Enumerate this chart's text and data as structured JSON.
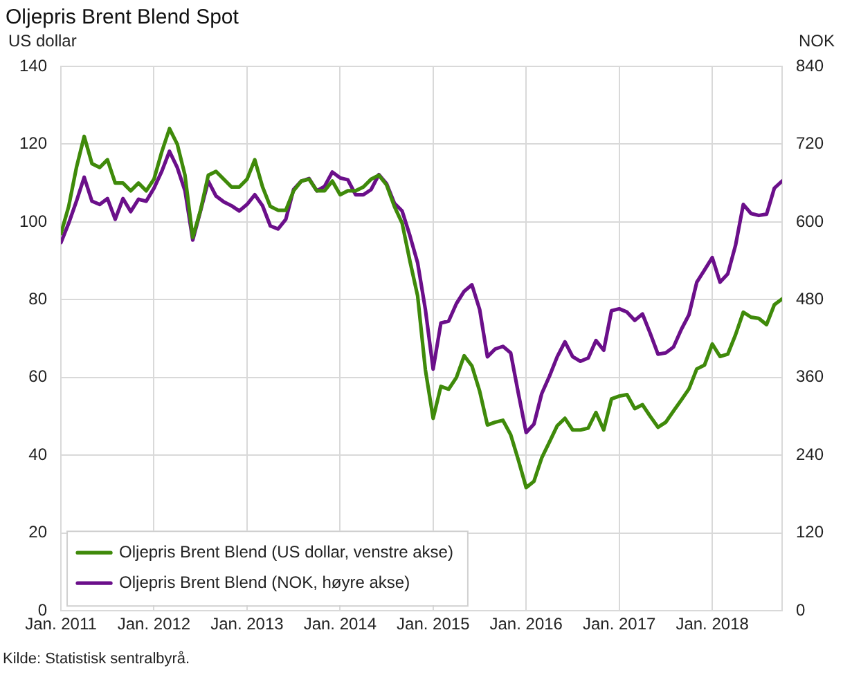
{
  "chart_data": {
    "type": "line",
    "title": "Oljepris Brent Blend Spot",
    "ylabel": "US dollar",
    "y2label": "NOK",
    "annotations": [
      "Kilde: Statistisk sentralbyrå."
    ],
    "x": [
      "2011-01",
      "2011-02",
      "2011-03",
      "2011-04",
      "2011-05",
      "2011-06",
      "2011-07",
      "2011-08",
      "2011-09",
      "2011-10",
      "2011-11",
      "2011-12",
      "2012-01",
      "2012-02",
      "2012-03",
      "2012-04",
      "2012-05",
      "2012-06",
      "2012-07",
      "2012-08",
      "2012-09",
      "2012-10",
      "2012-11",
      "2012-12",
      "2013-01",
      "2013-02",
      "2013-03",
      "2013-04",
      "2013-05",
      "2013-06",
      "2013-07",
      "2013-08",
      "2013-09",
      "2013-10",
      "2013-11",
      "2013-12",
      "2014-01",
      "2014-02",
      "2014-03",
      "2014-04",
      "2014-05",
      "2014-06",
      "2014-07",
      "2014-08",
      "2014-09",
      "2014-10",
      "2014-11",
      "2014-12",
      "2015-01",
      "2015-02",
      "2015-03",
      "2015-04",
      "2015-05",
      "2015-06",
      "2015-07",
      "2015-08",
      "2015-09",
      "2015-10",
      "2015-11",
      "2015-12",
      "2016-01",
      "2016-02",
      "2016-03",
      "2016-04",
      "2016-05",
      "2016-06",
      "2016-07",
      "2016-08",
      "2016-09",
      "2016-10",
      "2016-11",
      "2016-12",
      "2017-01",
      "2017-02",
      "2017-03",
      "2017-04",
      "2017-05",
      "2017-06",
      "2017-07",
      "2017-08",
      "2017-09",
      "2017-10",
      "2017-11",
      "2017-12",
      "2018-01",
      "2018-02",
      "2018-03",
      "2018-04",
      "2018-05",
      "2018-06",
      "2018-07",
      "2018-08",
      "2018-09",
      "2018-10"
    ],
    "series": [
      {
        "name": "Oljepris Brent Blend (US dollar, venstre akse)",
        "color": "#3f8a0a",
        "axis": "y",
        "values": [
          97,
          104,
          114,
          122,
          115,
          114,
          116,
          110,
          110,
          108,
          110,
          108,
          111,
          118,
          124,
          120,
          112,
          96,
          103,
          112,
          113,
          111,
          109,
          109,
          111,
          116,
          109,
          104,
          103,
          103,
          108,
          110.5,
          111,
          108,
          108,
          110.5,
          107,
          108,
          108,
          109,
          111,
          112,
          109.5,
          104,
          99.7,
          90,
          81,
          62,
          49.5,
          57.7,
          57,
          60,
          65.6,
          63,
          56.5,
          47.8,
          48.5,
          49,
          45.3,
          38.7,
          31.7,
          33.3,
          39.3,
          43.4,
          47.6,
          49.5,
          46.5,
          46.5,
          47,
          51,
          46.5,
          54.5,
          55.2,
          55.6,
          52,
          53,
          50,
          47.2,
          48.5,
          51.4,
          54.2,
          57.1,
          62.2,
          63.2,
          68.6,
          65.4,
          66,
          71,
          76.8,
          75.5,
          75.2,
          73.6,
          78.7,
          80.2
        ]
      },
      {
        "name": "Oljepris Brent Blend (NOK, høyre akse)",
        "color": "#6b0f8a",
        "axis": "y2",
        "values": [
          568,
          598,
          632,
          669,
          632,
          627,
          636,
          604,
          636,
          616,
          635,
          632,
          652,
          678,
          709,
          684,
          648,
          572,
          617,
          663,
          640,
          631,
          625,
          617,
          627,
          642,
          625,
          594,
          589,
          604,
          650,
          663,
          667,
          648,
          655,
          677,
          668,
          665,
          642,
          642,
          650,
          673,
          659,
          629,
          617,
          579,
          537,
          465,
          373,
          444,
          447,
          474,
          493,
          503,
          465,
          392,
          404,
          408,
          398,
          335,
          275,
          288,
          335,
          362,
          392,
          415,
          392,
          385,
          390,
          417,
          402,
          463,
          466,
          461,
          448,
          458,
          428,
          396,
          398,
          407,
          434,
          457,
          507,
          526,
          545,
          507,
          520,
          564,
          627,
          613,
          610,
          612,
          652,
          663
        ]
      }
    ],
    "xlim": [
      "2011-01",
      "2018-10"
    ],
    "xticks": [
      {
        "value": "2011-01",
        "label": "Jan. 2011"
      },
      {
        "value": "2012-01",
        "label": "Jan. 2012"
      },
      {
        "value": "2013-01",
        "label": "Jan. 2013"
      },
      {
        "value": "2014-01",
        "label": "Jan. 2014"
      },
      {
        "value": "2015-01",
        "label": "Jan. 2015"
      },
      {
        "value": "2016-01",
        "label": "Jan. 2016"
      },
      {
        "value": "2017-01",
        "label": "Jan. 2017"
      },
      {
        "value": "2018-01",
        "label": "Jan. 2018"
      }
    ],
    "ylim": [
      0,
      140
    ],
    "yticks": [
      0,
      20,
      40,
      60,
      80,
      100,
      120,
      140
    ],
    "y2lim": [
      0,
      840
    ],
    "y2ticks": [
      0,
      120,
      240,
      360,
      480,
      600,
      720,
      840
    ],
    "grid": true,
    "legend": "bottom left",
    "marker": "none",
    "line_style": "solid"
  }
}
